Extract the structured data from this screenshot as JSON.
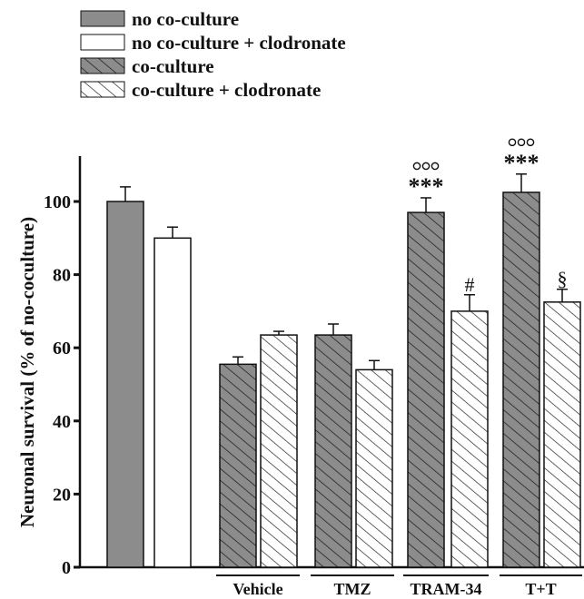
{
  "chart_data": {
    "type": "bar",
    "title": "",
    "xlabel": "",
    "ylabel": "Neuronal survival (% of no-coculture)",
    "ylim": [
      0,
      110
    ],
    "yticks": [
      0,
      20,
      40,
      60,
      80,
      100
    ],
    "grid": false,
    "legend_position": "top-left",
    "legend": [
      {
        "label": "no co-culture",
        "style": "solid-gray"
      },
      {
        "label": "no co-culture + clodronate",
        "style": "white"
      },
      {
        "label": "co-culture",
        "style": "gray-hatched"
      },
      {
        "label": "co-culture + clodronate",
        "style": "white-hatched"
      }
    ],
    "groups": [
      "",
      "Vehicle",
      "TMZ",
      "TRAM-34",
      "T+T"
    ],
    "bars": [
      {
        "group": 0,
        "series": "no co-culture",
        "value": 100,
        "error": 4,
        "annotation_top": "",
        "annotation": ""
      },
      {
        "group": 0,
        "series": "no co-culture + clodronate",
        "value": 90,
        "error": 3,
        "annotation_top": "",
        "annotation": ""
      },
      {
        "group": 1,
        "series": "co-culture",
        "value": 55.5,
        "error": 2,
        "annotation_top": "",
        "annotation": ""
      },
      {
        "group": 1,
        "series": "co-culture + clodronate",
        "value": 63.5,
        "error": 1,
        "annotation_top": "",
        "annotation": ""
      },
      {
        "group": 2,
        "series": "co-culture",
        "value": 63.5,
        "error": 3,
        "annotation_top": "",
        "annotation": ""
      },
      {
        "group": 2,
        "series": "co-culture + clodronate",
        "value": 54,
        "error": 2.5,
        "annotation_top": "",
        "annotation": ""
      },
      {
        "group": 3,
        "series": "co-culture",
        "value": 97,
        "error": 4,
        "annotation_top": "ooo",
        "annotation": "***"
      },
      {
        "group": 3,
        "series": "co-culture + clodronate",
        "value": 70,
        "error": 4.5,
        "annotation_top": "",
        "annotation": "#"
      },
      {
        "group": 4,
        "series": "co-culture",
        "value": 102.5,
        "error": 5,
        "annotation_top": "ooo",
        "annotation": "***"
      },
      {
        "group": 4,
        "series": "co-culture + clodronate",
        "value": 72.5,
        "error": 3.5,
        "annotation_top": "",
        "annotation": "§"
      }
    ],
    "colors": {
      "gray": "#8c8c8c",
      "white": "#ffffff",
      "stroke": "#111111"
    }
  }
}
